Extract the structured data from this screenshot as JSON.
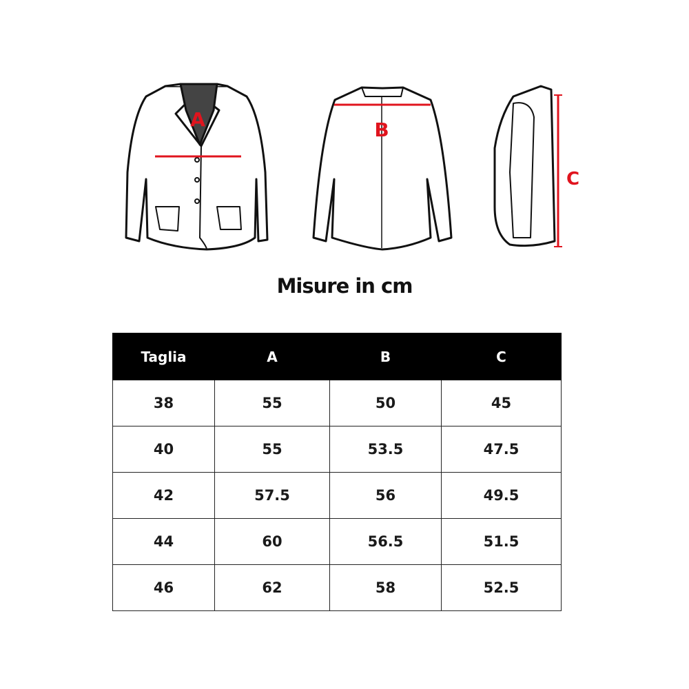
{
  "illustrations": {
    "front_label": "A",
    "back_label": "B",
    "side_label": "C",
    "accent_color": "#e0141e"
  },
  "title": "Misure in cm",
  "table": {
    "headers": [
      "Taglia",
      "A",
      "B",
      "C"
    ],
    "rows": [
      [
        "38",
        "55",
        "50",
        "45"
      ],
      [
        "40",
        "55",
        "53.5",
        "47.5"
      ],
      [
        "42",
        "57.5",
        "56",
        "49.5"
      ],
      [
        "44",
        "60",
        "56.5",
        "51.5"
      ],
      [
        "46",
        "62",
        "58",
        "52.5"
      ]
    ]
  }
}
